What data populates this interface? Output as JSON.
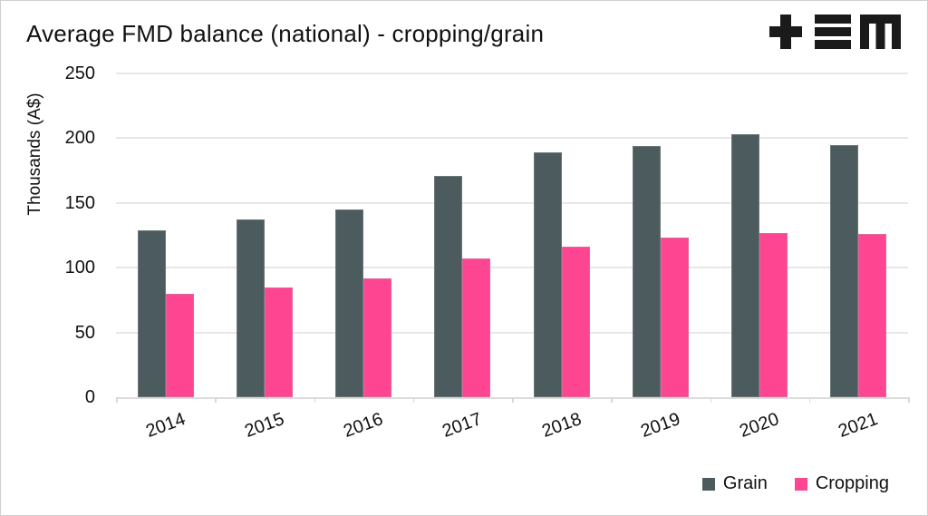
{
  "title": "Average FMD balance (national) - cropping/grain",
  "logo": {
    "name": "tem-logo",
    "color": "#1a1a1a"
  },
  "chart_data": {
    "type": "bar",
    "categories": [
      "2014",
      "2015",
      "2016",
      "2017",
      "2018",
      "2019",
      "2020",
      "2021"
    ],
    "series": [
      {
        "name": "Grain",
        "color": "#4b5b5e",
        "values": [
          129,
          137,
          145,
          171,
          189,
          194,
          203,
          195
        ]
      },
      {
        "name": "Cropping",
        "color": "#fd4592",
        "values": [
          80,
          85,
          92,
          107,
          116,
          123,
          127,
          126
        ]
      }
    ],
    "title": "Average FMD balance (national) - cropping/grain",
    "xlabel": "",
    "ylabel": "Thousands (A$)",
    "ylim": [
      0,
      250
    ],
    "yticks": [
      0,
      50,
      100,
      150,
      200,
      250
    ],
    "grid": true,
    "legend_position": "bottom-right"
  }
}
